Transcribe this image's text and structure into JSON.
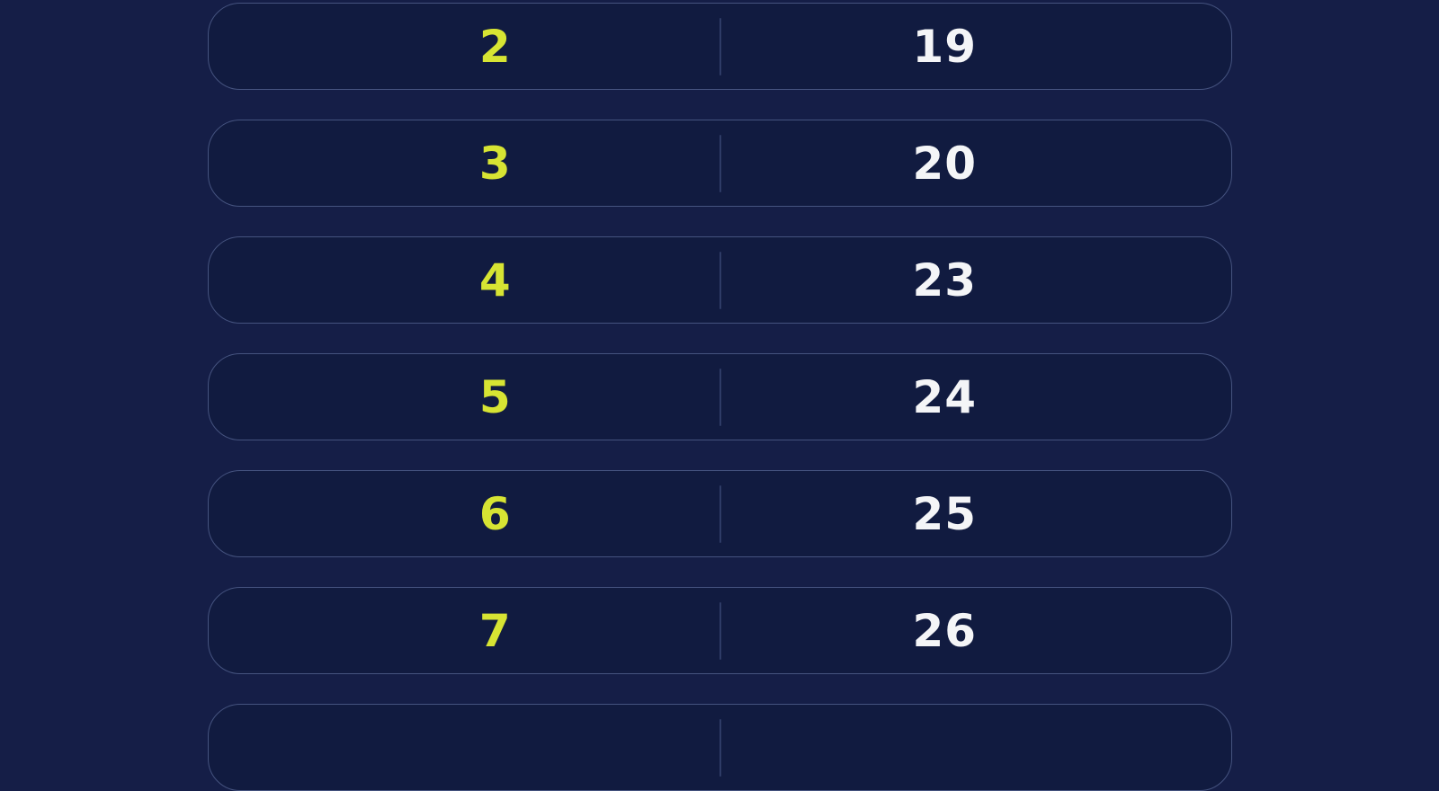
{
  "theme": {
    "page_background": "#151e47",
    "row_background": "#111b40",
    "row_border": "#45537f",
    "divider_color": "#2e3b66",
    "left_value_color": "#d7e433",
    "right_value_color": "#f4f5f7"
  },
  "table": {
    "rows": [
      {
        "left": "2",
        "right": "19"
      },
      {
        "left": "3",
        "right": "20"
      },
      {
        "left": "4",
        "right": "23"
      },
      {
        "left": "5",
        "right": "24"
      },
      {
        "left": "6",
        "right": "25"
      },
      {
        "left": "7",
        "right": "26"
      },
      {
        "left": "",
        "right": "",
        "partial": true
      }
    ]
  }
}
